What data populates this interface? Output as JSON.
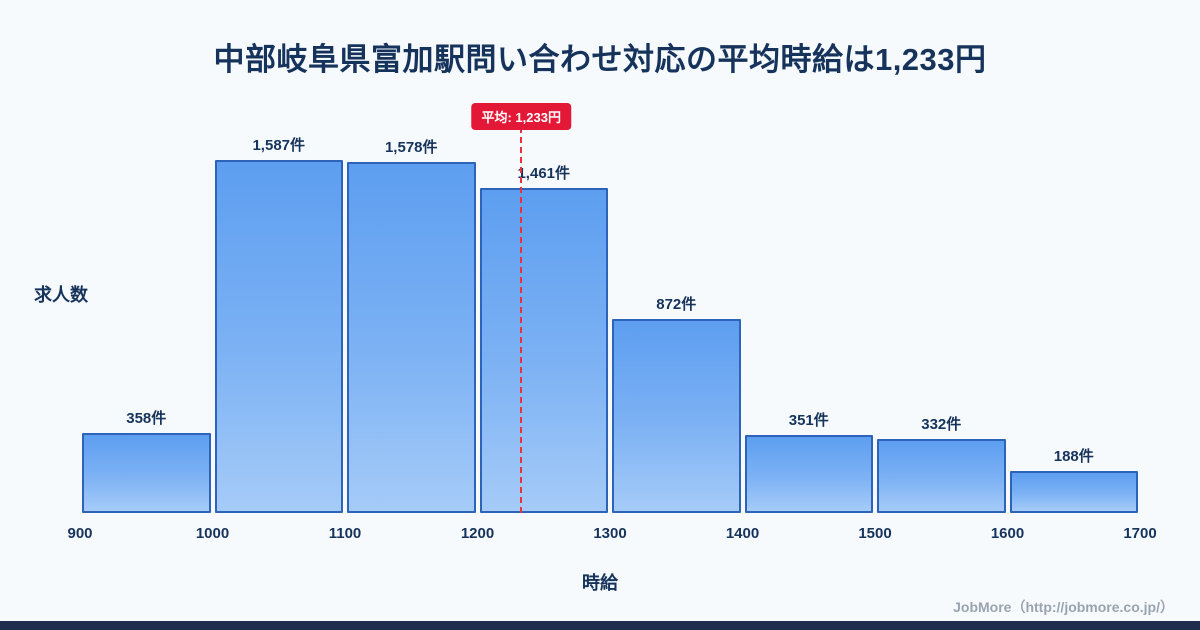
{
  "title": "中部岐阜県富加駅問い合わせ対応の平均時給は1,233円",
  "chart_data": {
    "type": "bar",
    "bin_edges": [
      900,
      1000,
      1100,
      1200,
      1300,
      1400,
      1500,
      1600,
      1700
    ],
    "categories": [
      "900-1000",
      "1000-1100",
      "1100-1200",
      "1200-1300",
      "1300-1400",
      "1400-1500",
      "1500-1600",
      "1600-1700"
    ],
    "values": [
      358,
      1587,
      1578,
      1461,
      872,
      351,
      332,
      188
    ],
    "value_labels": [
      "358件",
      "1,587件",
      "1,578件",
      "1,461件",
      "872件",
      "351件",
      "332件",
      "188件"
    ],
    "x_ticks": [
      "900",
      "1000",
      "1100",
      "1200",
      "1300",
      "1400",
      "1500",
      "1600",
      "1700"
    ],
    "xlabel": "時給",
    "ylabel": "求人数",
    "xlim": [
      900,
      1700
    ],
    "ylim": [
      0,
      1600
    ],
    "grid": false,
    "legend": "none",
    "mean": {
      "value": 1233,
      "label": "平均: 1,233円"
    }
  },
  "colors": {
    "background": "#f7fafd",
    "title_text": "#16335b",
    "bar_fill_top": "#5d9ef0",
    "bar_fill_bottom": "#a5cbf8",
    "bar_border": "#2d63b8",
    "mean_line": "#e8323c",
    "mean_badge_bg": "#e31837",
    "credit_text": "#9aa4b0",
    "bottom_strip": "#1f2c4e"
  },
  "footer": {
    "credit": "JobMore（http://jobmore.co.jp/）"
  }
}
